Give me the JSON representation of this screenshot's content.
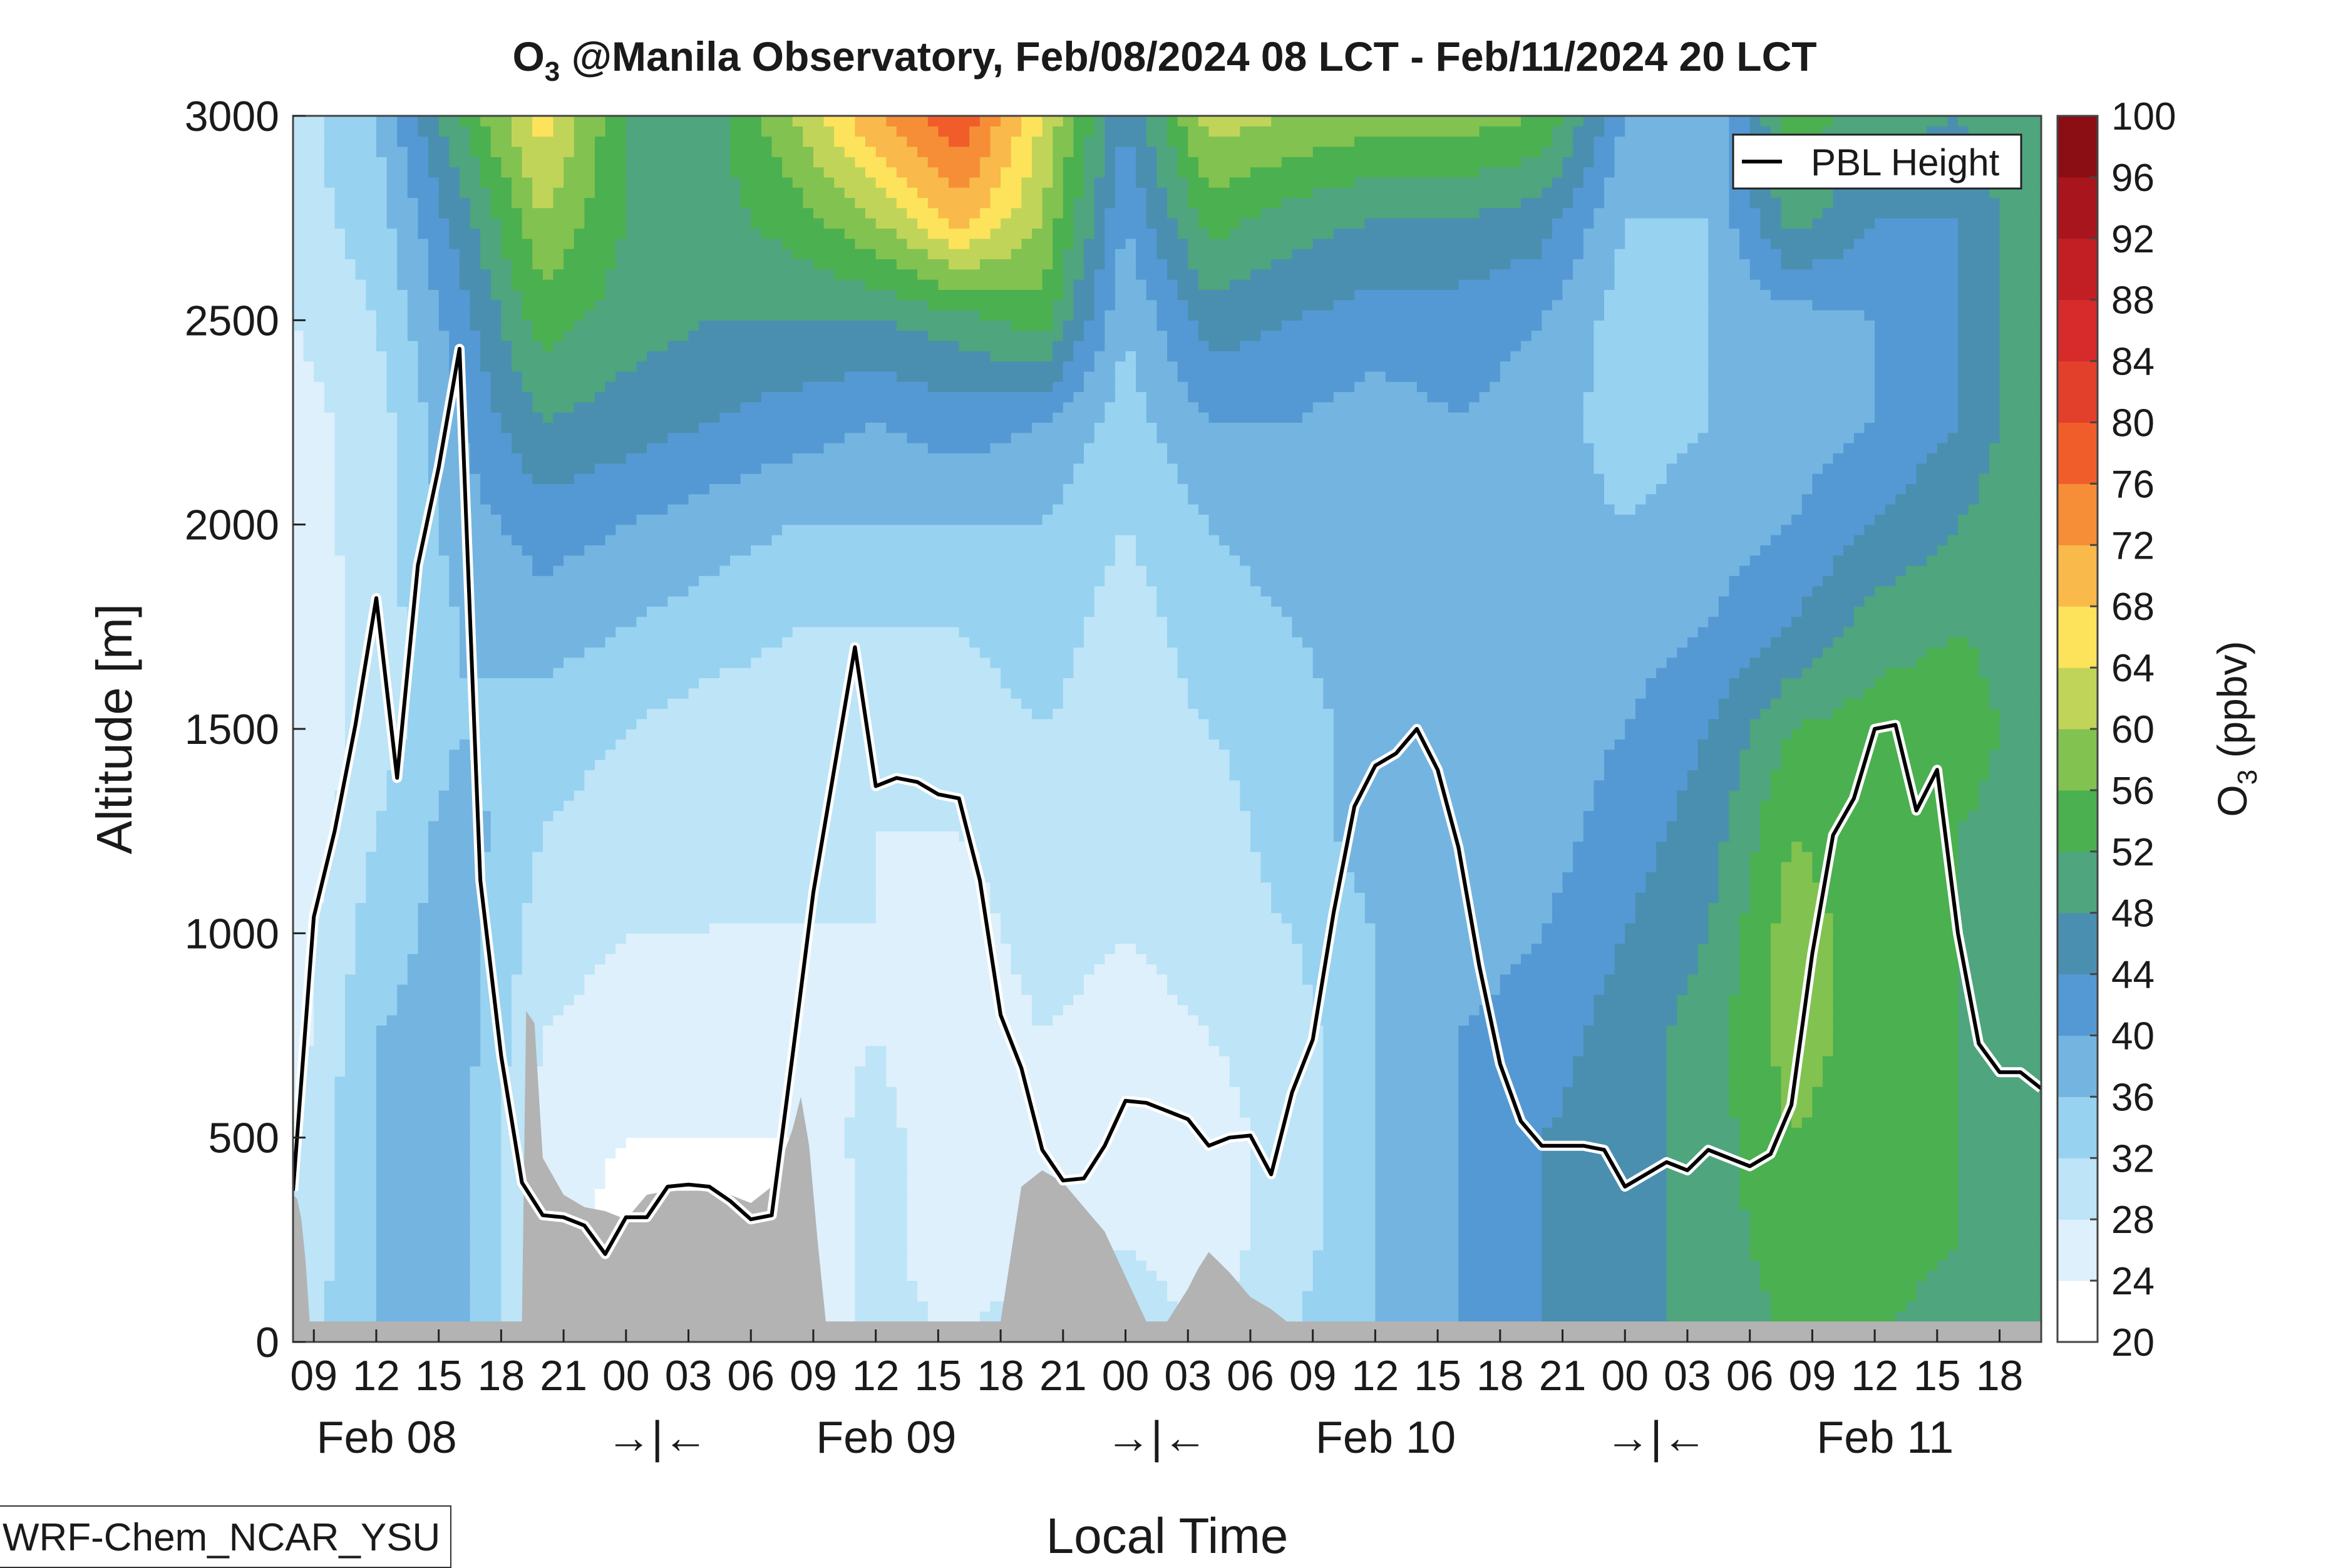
{
  "chart_data": {
    "type": "heatmap",
    "title_main": "O",
    "title_sub": "3",
    "title_rest": " @Manila Observatory, Feb/08/2024 08 LCT - Feb/11/2024 20 LCT",
    "ylabel": "Altitude [m]",
    "xlabel": "Local Time",
    "ylim": [
      0,
      3000
    ],
    "yticks": [
      0,
      500,
      1000,
      1500,
      2000,
      2500,
      3000
    ],
    "x_range_hours": [
      8,
      92
    ],
    "xtick_hours": [
      9,
      12,
      15,
      18,
      21,
      24,
      27,
      30,
      33,
      36,
      39,
      42,
      45,
      48,
      51,
      54,
      57,
      60,
      63,
      66,
      69,
      72,
      75,
      78,
      81,
      84,
      87,
      90
    ],
    "xtick_labels": [
      "09",
      "12",
      "15",
      "18",
      "21",
      "00",
      "03",
      "06",
      "09",
      "12",
      "15",
      "18",
      "21",
      "00",
      "03",
      "06",
      "09",
      "12",
      "15",
      "18",
      "21",
      "00",
      "03",
      "06",
      "09",
      "12",
      "15",
      "18"
    ],
    "day_labels": [
      {
        "text": "Feb 08",
        "hour": 12.5
      },
      {
        "text": "→|←",
        "hour": 25.5
      },
      {
        "text": "Feb 09",
        "hour": 36.5
      },
      {
        "text": "→|←",
        "hour": 49.5
      },
      {
        "text": "Feb 10",
        "hour": 60.5
      },
      {
        "text": "→|←",
        "hour": 73.5
      },
      {
        "text": "Feb 11",
        "hour": 84.5
      }
    ],
    "colorbar": {
      "label_main": "O",
      "label_sub": "3",
      "label_rest": " (ppbv)",
      "levels": [
        20,
        24,
        28,
        32,
        36,
        40,
        44,
        48,
        52,
        56,
        60,
        64,
        68,
        72,
        76,
        80,
        84,
        88,
        92,
        96,
        100
      ],
      "colors": [
        "#ffffff",
        "#def0fb",
        "#bde4f7",
        "#97d2f0",
        "#74b4e1",
        "#5499d3",
        "#4a8fb0",
        "#4ea57e",
        "#4bb04f",
        "#82c250",
        "#c1d45a",
        "#fde35b",
        "#f9b94b",
        "#f68e37",
        "#f15d2a",
        "#e2402b",
        "#d72a2a",
        "#c11f24",
        "#a8151d",
        "#8b0e14"
      ]
    },
    "legend": {
      "label": "PBL Height",
      "placement": "top-right"
    },
    "ozone_field_ppbv": {
      "x_hours": [
        8,
        12,
        16,
        20,
        24,
        28,
        32,
        36,
        40,
        44,
        48,
        52,
        56,
        60,
        64,
        68,
        72,
        76,
        80,
        84,
        88,
        92
      ],
      "z_m": [
        0,
        250,
        500,
        750,
        1000,
        1250,
        1500,
        1750,
        2000,
        2250,
        2500,
        2750,
        3000
      ],
      "values": [
        [
          30,
          36,
          38,
          26,
          24,
          24,
          24,
          30,
          28,
          32,
          30,
          28,
          32,
          36,
          40,
          44,
          46,
          50,
          52,
          52,
          50,
          50
        ],
        [
          28,
          36,
          38,
          26,
          22,
          22,
          22,
          30,
          24,
          26,
          28,
          26,
          30,
          36,
          40,
          44,
          46,
          50,
          54,
          54,
          52,
          50
        ],
        [
          28,
          36,
          38,
          26,
          24,
          24,
          24,
          30,
          24,
          26,
          26,
          26,
          30,
          36,
          40,
          44,
          46,
          50,
          56,
          54,
          52,
          50
        ],
        [
          26,
          36,
          38,
          28,
          26,
          26,
          26,
          28,
          24,
          28,
          26,
          28,
          30,
          36,
          40,
          42,
          46,
          50,
          58,
          54,
          52,
          50
        ],
        [
          26,
          34,
          38,
          30,
          28,
          28,
          28,
          28,
          26,
          30,
          28,
          30,
          32,
          36,
          38,
          40,
          44,
          48,
          58,
          54,
          52,
          50
        ],
        [
          24,
          32,
          38,
          32,
          30,
          28,
          28,
          28,
          28,
          30,
          28,
          30,
          34,
          38,
          38,
          38,
          42,
          46,
          56,
          54,
          52,
          50
        ],
        [
          24,
          30,
          36,
          34,
          32,
          30,
          30,
          28,
          30,
          32,
          30,
          32,
          34,
          38,
          38,
          38,
          40,
          44,
          52,
          54,
          54,
          50
        ],
        [
          24,
          30,
          36,
          38,
          36,
          34,
          32,
          32,
          32,
          34,
          30,
          34,
          36,
          38,
          38,
          38,
          38,
          40,
          44,
          50,
          52,
          50
        ],
        [
          26,
          30,
          38,
          42,
          40,
          38,
          36,
          36,
          36,
          36,
          32,
          36,
          38,
          38,
          38,
          38,
          36,
          38,
          40,
          44,
          48,
          52
        ],
        [
          26,
          30,
          40,
          48,
          46,
          44,
          42,
          40,
          42,
          40,
          34,
          40,
          40,
          38,
          40,
          38,
          34,
          36,
          38,
          40,
          44,
          52
        ],
        [
          28,
          32,
          42,
          54,
          50,
          48,
          48,
          48,
          50,
          54,
          36,
          46,
          44,
          42,
          42,
          40,
          34,
          36,
          38,
          40,
          44,
          52
        ],
        [
          30,
          34,
          46,
          60,
          52,
          50,
          54,
          60,
          70,
          60,
          40,
          54,
          50,
          48,
          48,
          46,
          36,
          36,
          50,
          44,
          44,
          52
        ],
        [
          30,
          36,
          52,
          66,
          52,
          50,
          60,
          72,
          80,
          64,
          44,
          62,
          60,
          58,
          58,
          56,
          40,
          36,
          54,
          50,
          48,
          52
        ]
      ]
    },
    "pbl_height_m": {
      "x_hours": [
        8,
        9,
        10,
        11,
        12,
        13,
        14,
        15,
        16,
        17,
        18,
        19,
        20,
        21,
        22,
        23,
        24,
        25,
        26,
        27,
        28,
        29,
        30,
        31,
        32,
        33,
        34,
        35,
        36,
        37,
        38,
        39,
        40,
        41,
        42,
        43,
        44,
        45,
        46,
        47,
        48,
        49,
        50,
        51,
        52,
        53,
        54,
        55,
        56,
        57,
        58,
        59,
        60,
        61,
        62,
        63,
        64,
        65,
        66,
        67,
        68,
        69,
        70,
        71,
        72,
        73,
        74,
        75,
        76,
        77,
        78,
        79,
        80,
        81,
        82,
        83,
        84,
        85,
        86,
        87,
        88,
        89,
        90,
        91,
        92
      ],
      "values": [
        370,
        1040,
        1250,
        1510,
        1820,
        1380,
        1900,
        2140,
        2430,
        1130,
        700,
        390,
        310,
        305,
        285,
        215,
        305,
        305,
        380,
        385,
        380,
        345,
        300,
        310,
        700,
        1100,
        1400,
        1700,
        1360,
        1380,
        1370,
        1340,
        1330,
        1130,
        800,
        670,
        470,
        395,
        400,
        480,
        590,
        585,
        565,
        545,
        480,
        500,
        505,
        410,
        610,
        740,
        1050,
        1310,
        1410,
        1440,
        1500,
        1400,
        1210,
        920,
        680,
        540,
        480,
        480,
        480,
        470,
        380,
        410,
        440,
        420,
        470,
        450,
        430,
        460,
        580,
        950,
        1240,
        1330,
        1500,
        1510,
        1300,
        1400,
        1000,
        730,
        660,
        660,
        620
      ]
    },
    "terrain_mask_m": {
      "x_hours": [
        8,
        8.2,
        8.4,
        8.6,
        8.8,
        19,
        19.2,
        19.6,
        20,
        21,
        22,
        23,
        24,
        25,
        26,
        27,
        28,
        29,
        30,
        31,
        32,
        32.4,
        32.8,
        33.2,
        33.6,
        34,
        42,
        43,
        44,
        45,
        46,
        47,
        48,
        49,
        50,
        51,
        51.5,
        52,
        53,
        54,
        55,
        56,
        57,
        92
      ],
      "values": [
        360,
        350,
        300,
        200,
        50,
        50,
        810,
        780,
        450,
        360,
        330,
        320,
        300,
        360,
        370,
        370,
        370,
        360,
        340,
        380,
        520,
        600,
        480,
        250,
        50,
        50,
        50,
        380,
        420,
        390,
        330,
        270,
        160,
        50,
        50,
        130,
        180,
        220,
        170,
        110,
        80,
        40,
        50,
        50
      ],
      "base_band_m": 50
    }
  },
  "model_label": "WRF-Chem_NCAR_YSU"
}
